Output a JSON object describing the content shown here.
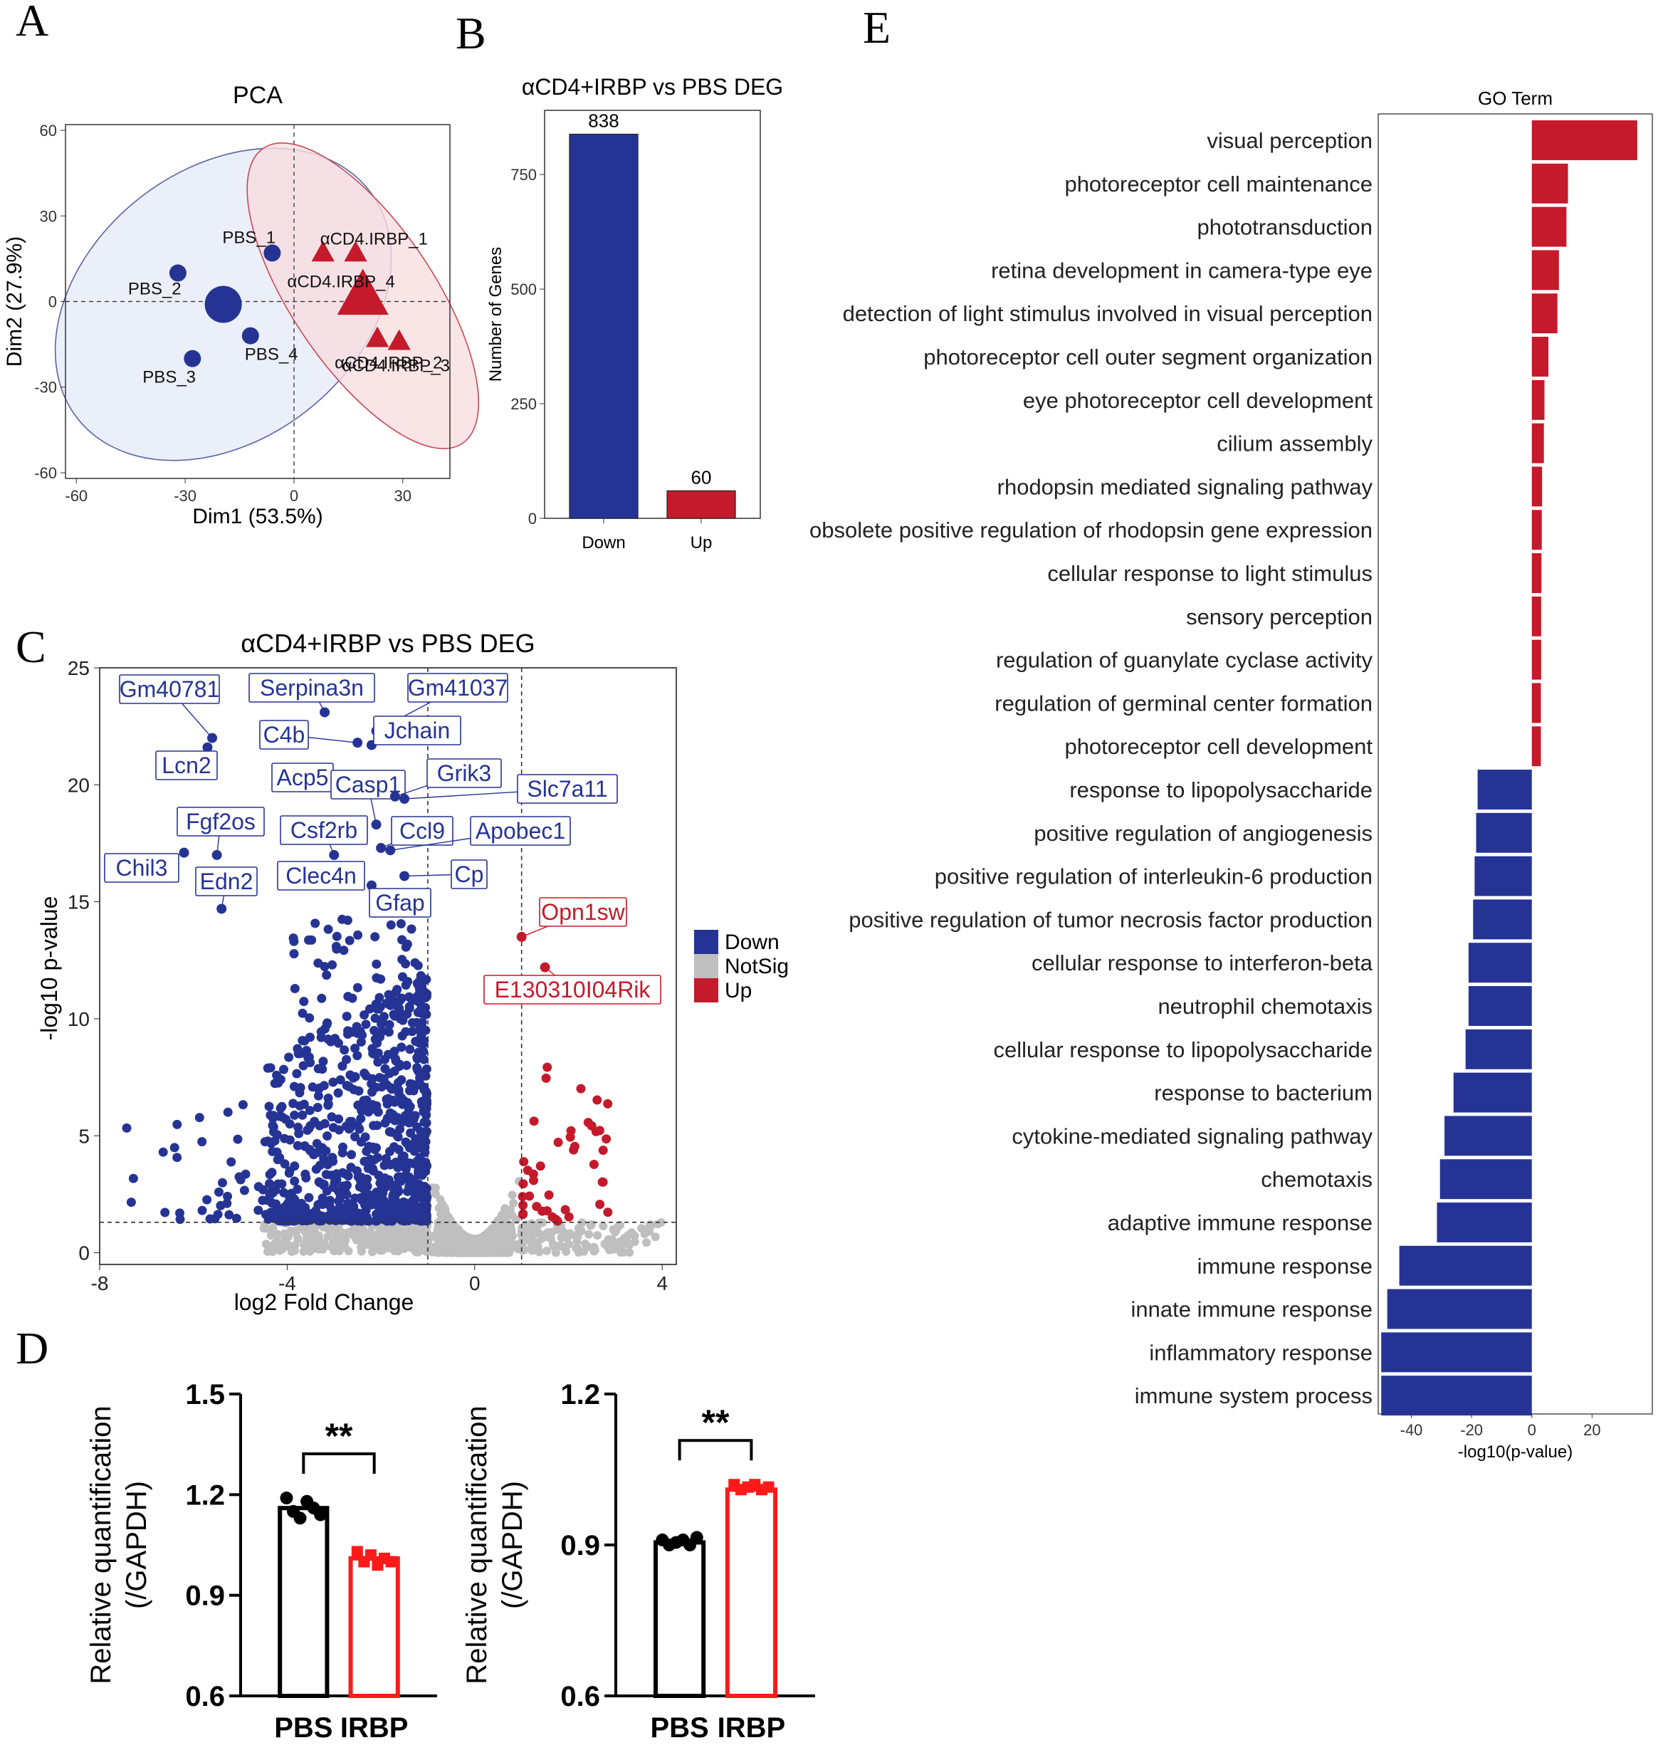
{
  "panels": {
    "A": "A",
    "B": "B",
    "C": "C",
    "D": "D",
    "E": "E"
  },
  "colors": {
    "down": "#253494",
    "up": "#c41a2b",
    "notsig": "#bfbfbf",
    "black": "#000000",
    "bright_red": "#ff1a1a",
    "pbs_ellipse_fill": "#e8ecf8",
    "pbs_ellipse_stroke": "#5a63a3",
    "irbp_ellipse_fill": "#f7dde0",
    "irbp_ellipse_stroke": "#c84a55"
  },
  "chart_data": [
    {
      "id": "A",
      "type": "scatter",
      "title": "PCA",
      "xlabel": "Dim1 (53.5%)",
      "ylabel": "Dim2 (27.9%)",
      "xlim": [
        -63,
        43
      ],
      "ylim": [
        -62,
        62
      ],
      "xticks": [
        -60,
        -30,
        0,
        30
      ],
      "yticks": [
        60,
        30,
        0,
        -30,
        -60
      ],
      "series": [
        {
          "name": "PBS",
          "marker": "circle",
          "centroid": {
            "x": -19.5,
            "y": -1
          },
          "points": [
            {
              "label": "PBS_1",
              "x": -6,
              "y": 17
            },
            {
              "label": "PBS_2",
              "x": -32,
              "y": 10
            },
            {
              "label": "PBS_3",
              "x": -28,
              "y": -20
            },
            {
              "label": "PBS_4",
              "x": -12,
              "y": -12
            }
          ]
        },
        {
          "name": "αCD4.IRBP",
          "marker": "triangle",
          "centroid": {
            "x": 19,
            "y": 2
          },
          "points": [
            {
              "label": "αCD4.IRBP_1",
              "x": 8,
              "y": 17
            },
            {
              "label": "αCD4.IRBP_2",
              "x": 23,
              "y": -13
            },
            {
              "label": "αCD4.IRBP_3",
              "x": 29,
              "y": -14
            },
            {
              "label": "αCD4.IRBP_4",
              "x": 17,
              "y": 17
            }
          ]
        }
      ]
    },
    {
      "id": "B",
      "type": "bar",
      "title": "αCD4+IRBP vs PBS DEG",
      "ylabel": "Number of Genes",
      "categories": [
        "Down",
        "Up"
      ],
      "values": [
        838,
        60
      ],
      "value_labels": [
        "838",
        "60"
      ],
      "ylim": [
        0,
        890
      ],
      "yticks": [
        0,
        250,
        500,
        750
      ]
    },
    {
      "id": "C",
      "type": "scatter",
      "title": "αCD4+IRBP vs PBS DEG",
      "xlabel": "log2 Fold Change",
      "ylabel": "-log10 p-value",
      "xlim": [
        -8,
        4.3
      ],
      "ylim": [
        -0.5,
        25
      ],
      "xticks": [
        -8,
        -4,
        0,
        4
      ],
      "yticks": [
        0,
        5,
        10,
        15,
        20,
        25
      ],
      "thresholds": {
        "fc": [
          -1,
          1
        ],
        "p": 1.3
      },
      "legend": [
        "Down",
        "NotSig",
        "Up"
      ],
      "labeled_genes": [
        {
          "gene": "Gm40781",
          "x": -5.6,
          "y": 22.0,
          "group": "Down"
        },
        {
          "gene": "Lcn2",
          "x": -5.7,
          "y": 21.6,
          "group": "Down"
        },
        {
          "gene": "Serpina3n",
          "x": -3.2,
          "y": 23.1,
          "group": "Down"
        },
        {
          "gene": "Gm41037",
          "x": -2.1,
          "y": 22.3,
          "group": "Down"
        },
        {
          "gene": "C4b",
          "x": -2.5,
          "y": 21.8,
          "group": "Down"
        },
        {
          "gene": "Jchain",
          "x": -2.2,
          "y": 21.7,
          "group": "Down"
        },
        {
          "gene": "Acp5",
          "x": -3.4,
          "y": 20.7,
          "group": "Down"
        },
        {
          "gene": "Casp1",
          "x": -2.1,
          "y": 18.3,
          "group": "Down"
        },
        {
          "gene": "Grik3",
          "x": -1.7,
          "y": 19.5,
          "group": "Down"
        },
        {
          "gene": "Slc7a11",
          "x": -1.5,
          "y": 19.4,
          "group": "Down"
        },
        {
          "gene": "Fgf2os",
          "x": -5.5,
          "y": 17.0,
          "group": "Down"
        },
        {
          "gene": "Csf2rb",
          "x": -3.0,
          "y": 17.0,
          "group": "Down"
        },
        {
          "gene": "Ccl9",
          "x": -2.0,
          "y": 17.3,
          "group": "Down"
        },
        {
          "gene": "Apobec1",
          "x": -1.8,
          "y": 17.2,
          "group": "Down"
        },
        {
          "gene": "Chil3",
          "x": -6.2,
          "y": 17.1,
          "group": "Down"
        },
        {
          "gene": "Edn2",
          "x": -5.4,
          "y": 14.7,
          "group": "Down"
        },
        {
          "gene": "Clec4n",
          "x": -2.9,
          "y": 15.8,
          "group": "Down"
        },
        {
          "gene": "Cp",
          "x": -1.5,
          "y": 16.1,
          "group": "Down"
        },
        {
          "gene": "Gfap",
          "x": -2.2,
          "y": 15.7,
          "group": "Down"
        },
        {
          "gene": "Opn1sw",
          "x": 1.0,
          "y": 13.5,
          "group": "Up"
        },
        {
          "gene": "E130310I04Rik",
          "x": 1.5,
          "y": 12.2,
          "group": "Up"
        }
      ]
    },
    {
      "id": "D1",
      "type": "bar",
      "ylabel": "Relative quantification\n(/GAPDH)",
      "categories": [
        "PBS",
        "IRBP"
      ],
      "values": [
        1.16,
        1.01
      ],
      "points": [
        [
          1.19,
          1.15,
          1.13,
          1.18,
          1.16,
          1.14
        ],
        [
          1.03,
          1.0,
          1.02,
          0.99,
          1.01,
          1.0
        ]
      ],
      "ylim": [
        0.6,
        1.5
      ],
      "yticks": [
        0.6,
        0.9,
        1.2,
        1.5
      ],
      "significance": "**"
    },
    {
      "id": "D2",
      "type": "bar",
      "ylabel": "Relative quantification\n(/GAPDH)",
      "categories": [
        "PBS",
        "IRBP"
      ],
      "values": [
        0.905,
        1.01
      ],
      "points": [
        [
          0.91,
          0.9,
          0.905,
          0.91,
          0.9,
          0.915
        ],
        [
          1.02,
          1.01,
          1.015,
          1.02,
          1.01,
          1.015
        ]
      ],
      "ylim": [
        0.6,
        1.2
      ],
      "yticks": [
        0.6,
        0.9,
        1.2
      ],
      "significance": "**"
    },
    {
      "id": "E",
      "type": "bar",
      "orientation": "horizontal",
      "title": "GO Term",
      "xlabel": "-log10(p-value)",
      "xlim": [
        -51,
        40
      ],
      "xticks": [
        -40,
        -20,
        0,
        20
      ],
      "terms": [
        {
          "term": "visual perception",
          "value": 35,
          "group": "Up"
        },
        {
          "term": "photoreceptor cell maintenance",
          "value": 12,
          "group": "Up"
        },
        {
          "term": "phototransduction",
          "value": 11.5,
          "group": "Up"
        },
        {
          "term": "retina development in camera-type eye",
          "value": 9,
          "group": "Up"
        },
        {
          "term": "detection of light stimulus involved in visual perception",
          "value": 8.5,
          "group": "Up"
        },
        {
          "term": "photoreceptor cell outer segment organization",
          "value": 5.5,
          "group": "Up"
        },
        {
          "term": "eye photoreceptor cell development",
          "value": 4.2,
          "group": "Up"
        },
        {
          "term": "cilium assembly",
          "value": 4,
          "group": "Up"
        },
        {
          "term": "rhodopsin mediated signaling pathway",
          "value": 3.4,
          "group": "Up"
        },
        {
          "term": "obsolete positive regulation of rhodopsin gene expression",
          "value": 3.3,
          "group": "Up"
        },
        {
          "term": "cellular response to light stimulus",
          "value": 3.2,
          "group": "Up"
        },
        {
          "term": "sensory perception",
          "value": 3.1,
          "group": "Up"
        },
        {
          "term": "regulation of guanylate cyclase activity",
          "value": 3.1,
          "group": "Up"
        },
        {
          "term": "regulation of germinal center formation",
          "value": 3,
          "group": "Up"
        },
        {
          "term": "photoreceptor cell development",
          "value": 3,
          "group": "Up"
        },
        {
          "term": "response to lipopolysaccharide",
          "value": -18,
          "group": "Down"
        },
        {
          "term": "positive regulation of angiogenesis",
          "value": -18.5,
          "group": "Down"
        },
        {
          "term": "positive regulation of interleukin-6 production",
          "value": -19,
          "group": "Down"
        },
        {
          "term": "positive regulation of tumor necrosis factor production",
          "value": -19.5,
          "group": "Down"
        },
        {
          "term": "cellular response to interferon-beta",
          "value": -21,
          "group": "Down"
        },
        {
          "term": "neutrophil chemotaxis",
          "value": -21,
          "group": "Down"
        },
        {
          "term": "cellular response to lipopolysaccharide",
          "value": -22,
          "group": "Down"
        },
        {
          "term": "response to bacterium",
          "value": -26,
          "group": "Down"
        },
        {
          "term": "cytokine-mediated signaling pathway",
          "value": -29,
          "group": "Down"
        },
        {
          "term": "chemotaxis",
          "value": -30.5,
          "group": "Down"
        },
        {
          "term": "adaptive immune response",
          "value": -31.5,
          "group": "Down"
        },
        {
          "term": "immune response",
          "value": -44,
          "group": "Down"
        },
        {
          "term": "innate immune response",
          "value": -48,
          "group": "Down"
        },
        {
          "term": "inflammatory response",
          "value": -50,
          "group": "Down"
        },
        {
          "term": "immune system process",
          "value": -50,
          "group": "Down"
        }
      ]
    }
  ]
}
